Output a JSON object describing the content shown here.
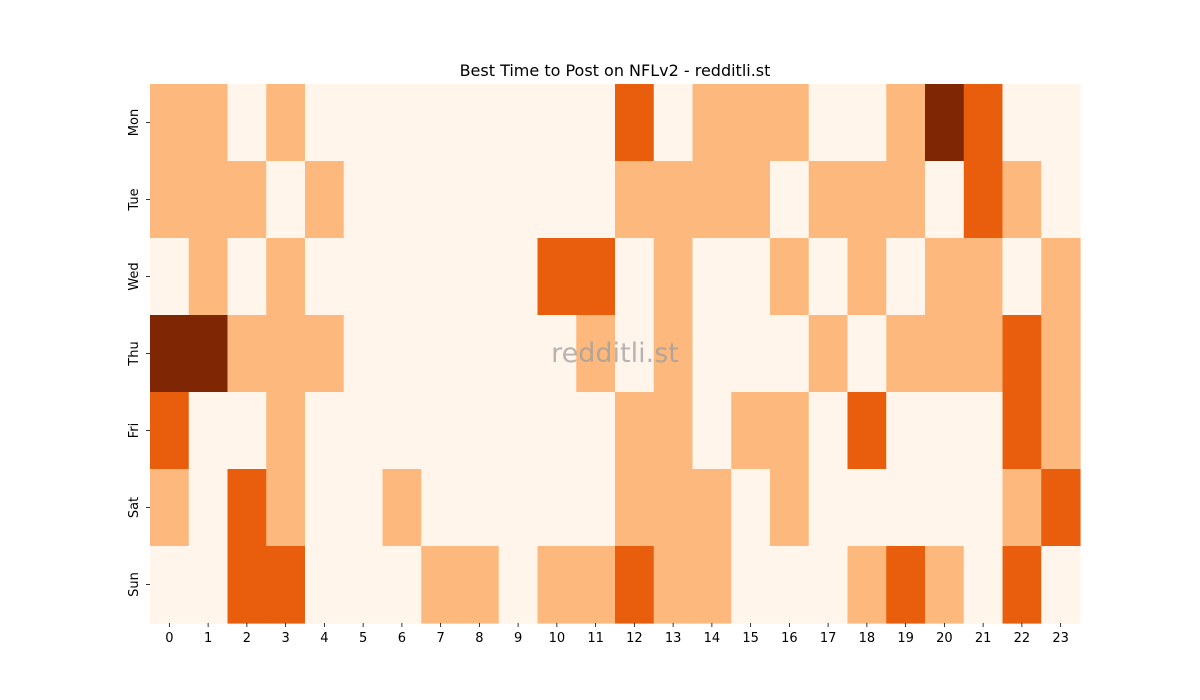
{
  "chart_data": {
    "type": "heatmap",
    "title": "Best Time to Post on NFLv2 - redditli.st",
    "watermark": "redditli.st",
    "xlabel": "",
    "ylabel": "",
    "x_ticks": [
      "0",
      "1",
      "2",
      "3",
      "4",
      "5",
      "6",
      "7",
      "8",
      "9",
      "10",
      "11",
      "12",
      "13",
      "14",
      "15",
      "16",
      "17",
      "18",
      "19",
      "20",
      "21",
      "22",
      "23"
    ],
    "y_ticks": [
      "Mon",
      "Tue",
      "Wed",
      "Thu",
      "Fri",
      "Sat",
      "Sun"
    ],
    "levels": [
      0,
      1,
      2,
      3
    ],
    "colors": [
      "#fff5eb",
      "#fdb97d",
      "#e95e0d",
      "#7f2704"
    ],
    "values": [
      [
        1,
        1,
        0,
        1,
        0,
        0,
        0,
        0,
        0,
        0,
        0,
        0,
        2,
        0,
        1,
        1,
        1,
        0,
        0,
        1,
        3,
        2,
        0,
        0
      ],
      [
        1,
        1,
        1,
        0,
        1,
        0,
        0,
        0,
        0,
        0,
        0,
        0,
        1,
        1,
        1,
        1,
        0,
        1,
        1,
        1,
        0,
        2,
        1,
        0
      ],
      [
        0,
        1,
        0,
        1,
        0,
        0,
        0,
        0,
        0,
        0,
        2,
        2,
        0,
        1,
        0,
        0,
        1,
        0,
        1,
        0,
        1,
        1,
        0,
        1
      ],
      [
        3,
        3,
        1,
        1,
        1,
        0,
        0,
        0,
        0,
        0,
        0,
        1,
        0,
        1,
        0,
        0,
        0,
        1,
        0,
        1,
        1,
        1,
        2,
        1
      ],
      [
        2,
        0,
        0,
        1,
        0,
        0,
        0,
        0,
        0,
        0,
        0,
        0,
        1,
        1,
        0,
        1,
        1,
        0,
        2,
        0,
        0,
        0,
        2,
        1
      ],
      [
        1,
        0,
        2,
        1,
        0,
        0,
        1,
        0,
        0,
        0,
        0,
        0,
        1,
        1,
        1,
        0,
        1,
        0,
        0,
        0,
        0,
        0,
        1,
        2
      ],
      [
        0,
        0,
        2,
        2,
        0,
        0,
        0,
        1,
        1,
        0,
        1,
        1,
        2,
        1,
        1,
        0,
        0,
        0,
        1,
        2,
        1,
        0,
        2,
        0
      ]
    ]
  }
}
